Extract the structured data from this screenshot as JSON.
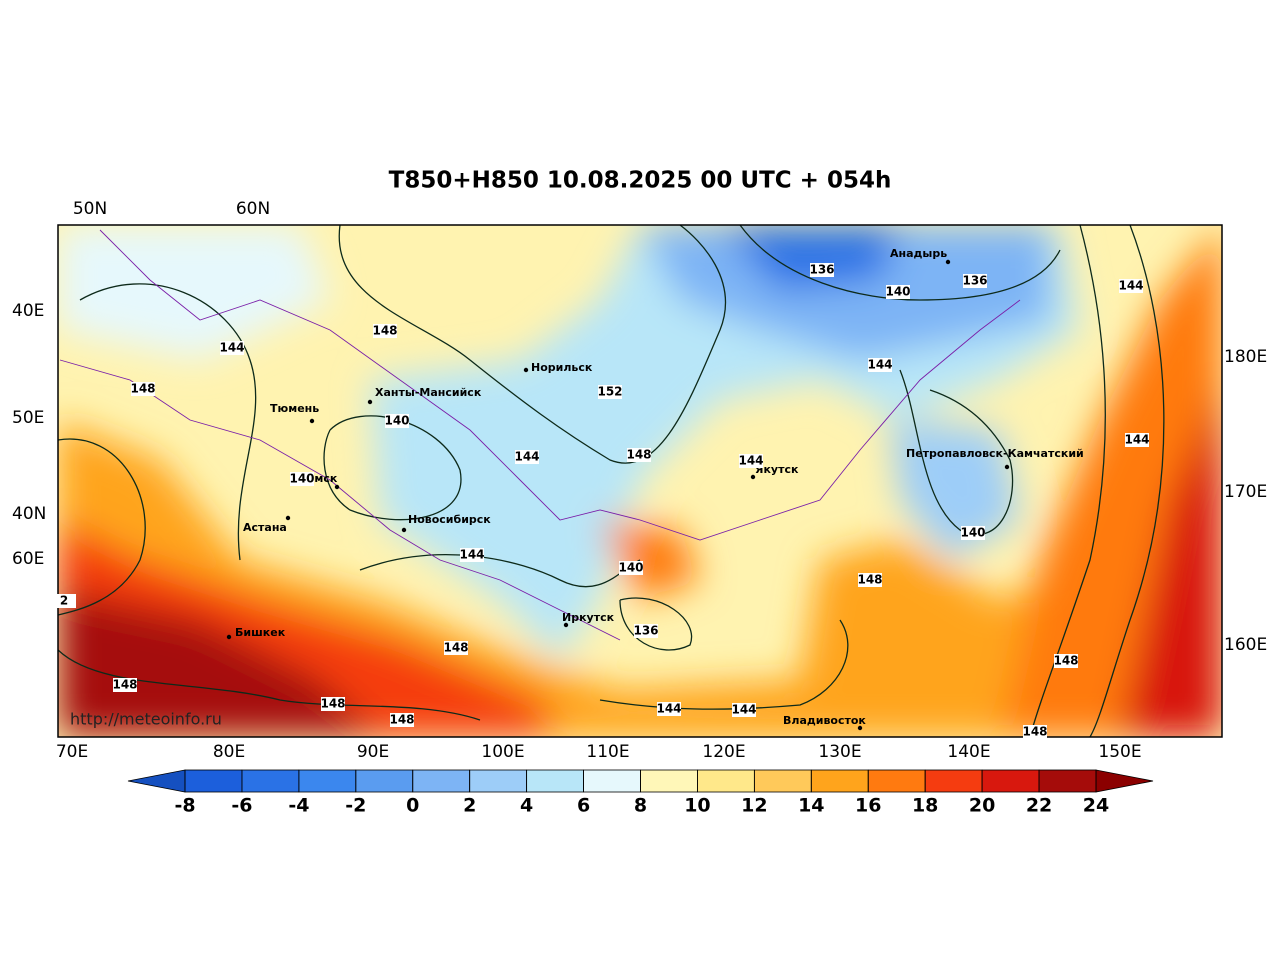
{
  "title": "T850+H850 10.08.2025 00 UTC + 054h",
  "top_labels": [
    "50N",
    "60N"
  ],
  "left_labels": [
    "40E",
    "50E",
    "40N",
    "60E"
  ],
  "right_labels": [
    "180E",
    "170E",
    "160E"
  ],
  "bottom_labels": [
    "70E",
    "80E",
    "90E",
    "100E",
    "110E",
    "120E",
    "130E",
    "140E",
    "150E"
  ],
  "cities": [
    "Норильск",
    "Ханты-Мансийск",
    "Тюмень",
    "Омск",
    "Астана",
    "Новосибирск",
    "Иркутск",
    "Бишкек",
    "Якутск",
    "Анадырь",
    "Петропавловск-Камчатский",
    "Владивосток"
  ],
  "contour_labels": [
    136,
    136,
    140,
    144,
    148,
    144,
    148,
    152,
    140,
    144,
    144,
    144,
    148,
    144,
    140,
    140,
    144,
    140,
    148,
    2,
    136,
    148,
    148,
    148,
    148,
    148,
    144,
    144,
    148
  ],
  "credit": "http://meteoinfo.ru",
  "colorbar": {
    "ticks": [
      -8,
      -6,
      -4,
      -2,
      0,
      2,
      4,
      6,
      8,
      10,
      12,
      14,
      16,
      18,
      20,
      22,
      24
    ],
    "colors": [
      "#1c5fdc",
      "#2a72e6",
      "#3b87ee",
      "#5a9cf0",
      "#7db4f5",
      "#9dcdf8",
      "#b8e6f8",
      "#e6f8fc",
      "#fff7b8",
      "#ffe88a",
      "#ffc95a",
      "#ffa41c",
      "#ff7a10",
      "#f53c10",
      "#d8180e",
      "#a50c0a"
    ],
    "under_color": "#1550c0",
    "over_color": "#8b0000"
  }
}
